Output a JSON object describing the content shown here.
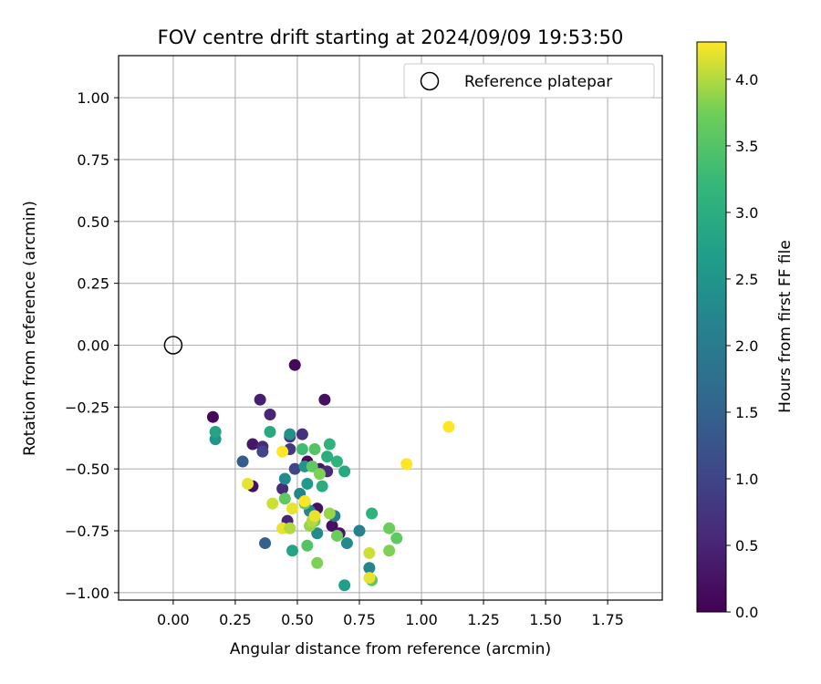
{
  "chart_data": {
    "type": "scatter",
    "title": "FOV centre drift starting at 2024/09/09 19:53:50",
    "xlabel": "Angular distance from reference (arcmin)",
    "ylabel": "Rotation from reference (arcmin)",
    "xlim": [
      -0.22,
      1.97
    ],
    "ylim": [
      -1.03,
      1.17
    ],
    "x_ticks": [
      "0.00",
      "0.25",
      "0.50",
      "0.75",
      "1.00",
      "1.25",
      "1.50",
      "1.75"
    ],
    "y_ticks": [
      "1.00",
      "0.75",
      "0.50",
      "0.25",
      "0.00",
      "−0.25",
      "−0.50",
      "−0.75",
      "−1.00"
    ],
    "grid": true,
    "legend": {
      "position": "top-right",
      "entries": [
        "Reference platepar"
      ]
    },
    "reference_point": {
      "x": 0.0,
      "y": 0.0,
      "label": "Reference platepar"
    },
    "colorbar": {
      "label": "Hours from first FF file",
      "colormap": "viridis",
      "range": [
        0.0,
        4.28
      ],
      "ticks": [
        "0.0",
        "0.5",
        "1.0",
        "1.5",
        "2.0",
        "2.5",
        "3.0",
        "3.5",
        "4.0"
      ]
    },
    "points": [
      [
        0.49,
        -0.08,
        0.1
      ],
      [
        0.61,
        -0.22,
        0.2
      ],
      [
        0.16,
        -0.29,
        0.1
      ],
      [
        0.35,
        -0.22,
        0.4
      ],
      [
        0.39,
        -0.28,
        0.5
      ],
      [
        0.32,
        -0.4,
        0.3
      ],
      [
        0.36,
        -0.41,
        0.6
      ],
      [
        0.36,
        -0.43,
        1.0
      ],
      [
        0.32,
        -0.57,
        0.2
      ],
      [
        0.28,
        -0.47,
        1.4
      ],
      [
        0.44,
        -0.58,
        0.6
      ],
      [
        0.46,
        -0.71,
        0.5
      ],
      [
        0.47,
        -0.42,
        0.8
      ],
      [
        0.47,
        -0.37,
        0.7
      ],
      [
        0.49,
        -0.5,
        1.0
      ],
      [
        0.52,
        -0.36,
        0.7
      ],
      [
        0.54,
        -0.47,
        0.1
      ],
      [
        0.59,
        -0.5,
        0.3
      ],
      [
        0.58,
        -0.66,
        0.2
      ],
      [
        0.62,
        -0.51,
        0.6
      ],
      [
        0.64,
        -0.73,
        0.2
      ],
      [
        0.67,
        -0.76,
        0.3
      ],
      [
        0.37,
        -0.8,
        1.5
      ],
      [
        0.17,
        -0.38,
        2.5
      ],
      [
        0.17,
        -0.35,
        2.8
      ],
      [
        0.39,
        -0.35,
        2.9
      ],
      [
        0.47,
        -0.36,
        2.4
      ],
      [
        0.45,
        -0.54,
        2.3
      ],
      [
        0.48,
        -0.83,
        2.8
      ],
      [
        0.51,
        -0.6,
        2.2
      ],
      [
        0.53,
        -0.49,
        2.5
      ],
      [
        0.54,
        -0.56,
        2.6
      ],
      [
        0.55,
        -0.67,
        2.2
      ],
      [
        0.58,
        -0.76,
        2.3
      ],
      [
        0.6,
        -0.57,
        3.0
      ],
      [
        0.63,
        -0.4,
        3.1
      ],
      [
        0.62,
        -0.45,
        3.0
      ],
      [
        0.65,
        -0.69,
        2.0
      ],
      [
        0.66,
        -0.47,
        3.1
      ],
      [
        0.69,
        -0.51,
        2.9
      ],
      [
        0.7,
        -0.8,
        2.3
      ],
      [
        0.69,
        -0.97,
        2.7
      ],
      [
        0.75,
        -0.75,
        2.1
      ],
      [
        0.79,
        -0.9,
        2.2
      ],
      [
        0.8,
        -0.68,
        3.1
      ],
      [
        0.8,
        -0.95,
        3.6
      ],
      [
        0.52,
        -0.42,
        3.3
      ],
      [
        0.56,
        -0.49,
        3.6
      ],
      [
        0.57,
        -0.42,
        3.5
      ],
      [
        0.59,
        -0.52,
        3.8
      ],
      [
        0.45,
        -0.62,
        3.6
      ],
      [
        0.53,
        -0.64,
        3.7
      ],
      [
        0.54,
        -0.81,
        3.5
      ],
      [
        0.55,
        -0.73,
        3.9
      ],
      [
        0.57,
        -0.71,
        3.7
      ],
      [
        0.58,
        -0.88,
        3.8
      ],
      [
        0.63,
        -0.68,
        3.9
      ],
      [
        0.66,
        -0.77,
        3.7
      ],
      [
        0.87,
        -0.74,
        3.7
      ],
      [
        0.87,
        -0.83,
        3.8
      ],
      [
        0.9,
        -0.78,
        3.6
      ],
      [
        0.3,
        -0.56,
        4.2
      ],
      [
        0.4,
        -0.64,
        4.1
      ],
      [
        0.44,
        -0.43,
        4.3
      ],
      [
        0.44,
        -0.74,
        4.2
      ],
      [
        0.47,
        -0.74,
        4.0
      ],
      [
        0.48,
        -0.66,
        4.2
      ],
      [
        0.53,
        -0.63,
        4.3
      ],
      [
        0.56,
        -0.71,
        4.0
      ],
      [
        0.57,
        -0.69,
        4.2
      ],
      [
        0.79,
        -0.84,
        4.1
      ],
      [
        0.79,
        -0.94,
        4.2
      ],
      [
        0.94,
        -0.48,
        4.3
      ],
      [
        1.11,
        -0.33,
        4.3
      ]
    ]
  }
}
